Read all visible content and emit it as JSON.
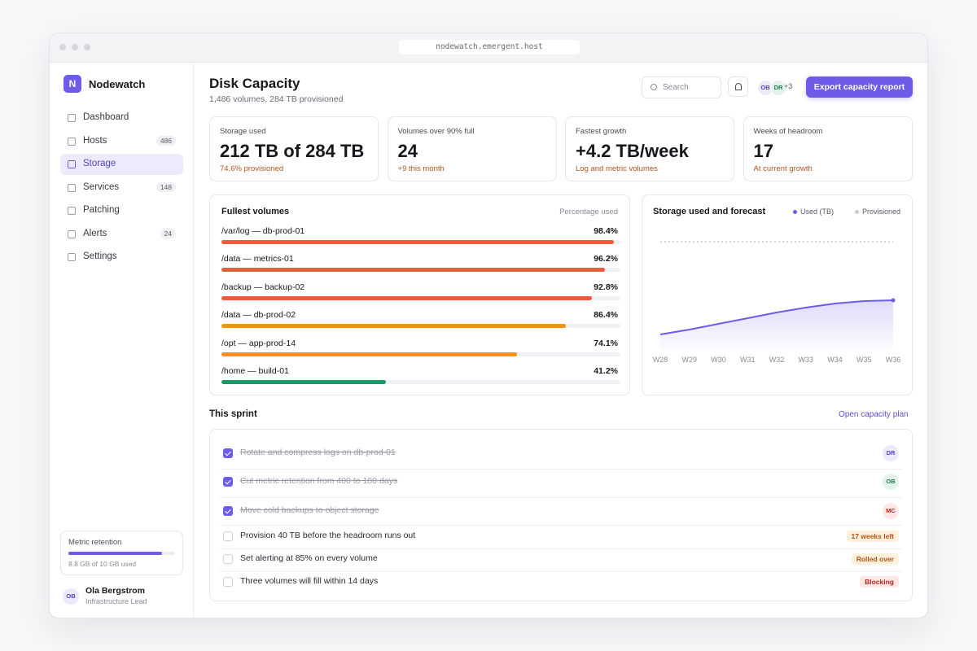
{
  "browser": {
    "url": "nodewatch.emergent.host"
  },
  "sidebar": {
    "logo": "N",
    "brand": "Nodewatch",
    "nav": [
      {
        "label": "Dashboard"
      },
      {
        "label": "Hosts",
        "badge": 486
      },
      {
        "label": "Storage",
        "active": true
      },
      {
        "label": "Services",
        "badge": 148
      },
      {
        "label": "Patching"
      },
      {
        "label": "Alerts",
        "badge": 24
      },
      {
        "label": "Settings"
      }
    ],
    "retention": {
      "title": "Metric retention",
      "value": 8.8,
      "max": 10,
      "value_label": "8.8 GB of 10 GB used",
      "color": "#6c5ce7"
    },
    "user": {
      "initials": "OB",
      "name": "Ola Bergstrom",
      "role": "Infrastructure Lead"
    }
  },
  "header": {
    "title": "Disk Capacity",
    "subtitle": "1,486 volumes, 284 TB provisioned",
    "search": "Search",
    "avatars": [
      {
        "initials": "OB",
        "color": "#ece9fb",
        "text_color": "#5046b8"
      },
      {
        "initials": "DR",
        "color": "#e3f4ec",
        "text_color": "#1b7a52"
      }
    ],
    "more": "+3",
    "button": "Export capacity report"
  },
  "kpis": [
    {
      "label": "Storage used",
      "value": "212 TB of 284 TB",
      "note": "74.6% provisioned"
    },
    {
      "label": "Volumes over 90% full",
      "value": "24",
      "note": "+9 this month"
    },
    {
      "label": "Fastest growth",
      "value": "+4.2 TB/week",
      "note": "Log and metric volumes"
    },
    {
      "label": "Weeks of headroom",
      "value": "17",
      "note": "At current growth"
    }
  ],
  "fullest": {
    "title": "Fullest volumes",
    "subtitle": "Percentage used",
    "xlim": [
      0,
      100
    ],
    "items": [
      {
        "name": "/var/log — db-prod-01",
        "value": 98.4,
        "value_label": "98.4%",
        "color": "#ef5a3c"
      },
      {
        "name": "/data — metrics-01",
        "value": 96.2,
        "value_label": "96.2%",
        "color": "#ef5a3c"
      },
      {
        "name": "/backup — backup-02",
        "value": 92.8,
        "value_label": "92.8%",
        "color": "#ef5a3c"
      },
      {
        "name": "/data — db-prod-02",
        "value": 86.4,
        "value_label": "86.4%",
        "color": "#f5930b"
      },
      {
        "name": "/opt — app-prod-14",
        "value": 74.1,
        "value_label": "74.1%",
        "color": "#f5930b"
      },
      {
        "name": "/home — build-01",
        "value": 41.2,
        "value_label": "41.2%",
        "color": "#169a68"
      }
    ]
  },
  "forecast": {
    "type": "line",
    "title": "Storage used and forecast",
    "x": [
      "W28",
      "W29",
      "W30",
      "W31",
      "W32",
      "W33",
      "W34",
      "W35",
      "W36"
    ],
    "ylim": [
      150,
      300
    ],
    "series": [
      {
        "name": "Used (TB)",
        "color": "#6c5ce7",
        "values": [
          170,
          176,
          183,
          190,
          197,
          203,
          208,
          211,
          212
        ]
      },
      {
        "name": "Provisioned",
        "color": "#c9c9d2",
        "dashed": true,
        "values": [
          284,
          284,
          284,
          284,
          284,
          284,
          284,
          284,
          284
        ]
      }
    ]
  },
  "sprint": {
    "title": "This sprint",
    "link": "Open capacity plan",
    "tasks": [
      {
        "text": "Rotate and compress logs on db-prod-01",
        "done": true,
        "assignee": {
          "initials": "DR",
          "color": "#ece9fb",
          "text_color": "#5046b8"
        }
      },
      {
        "text": "Cut metric retention from 400 to 180 days",
        "done": true,
        "assignee": {
          "initials": "OB",
          "color": "#e3f4ec",
          "text_color": "#1b7a52"
        }
      },
      {
        "text": "Move cold backups to object storage",
        "done": true,
        "assignee": {
          "initials": "MC",
          "color": "#fde8e6",
          "text_color": "#b3261e"
        }
      },
      {
        "text": "Provision 40 TB before the headroom runs out",
        "done": false,
        "tag": {
          "text": "17 weeks left",
          "color": "#fdf0dc",
          "text_color": "#b4541a"
        }
      },
      {
        "text": "Set alerting at 85% on every volume",
        "done": false,
        "tag": {
          "text": "Rolled over",
          "color": "#fdf0dc",
          "text_color": "#b4541a"
        }
      },
      {
        "text": "Three volumes will fill within 14 days",
        "done": false,
        "tag": {
          "text": "Blocking",
          "color": "#fde8e6",
          "text_color": "#b3261e"
        }
      }
    ]
  }
}
